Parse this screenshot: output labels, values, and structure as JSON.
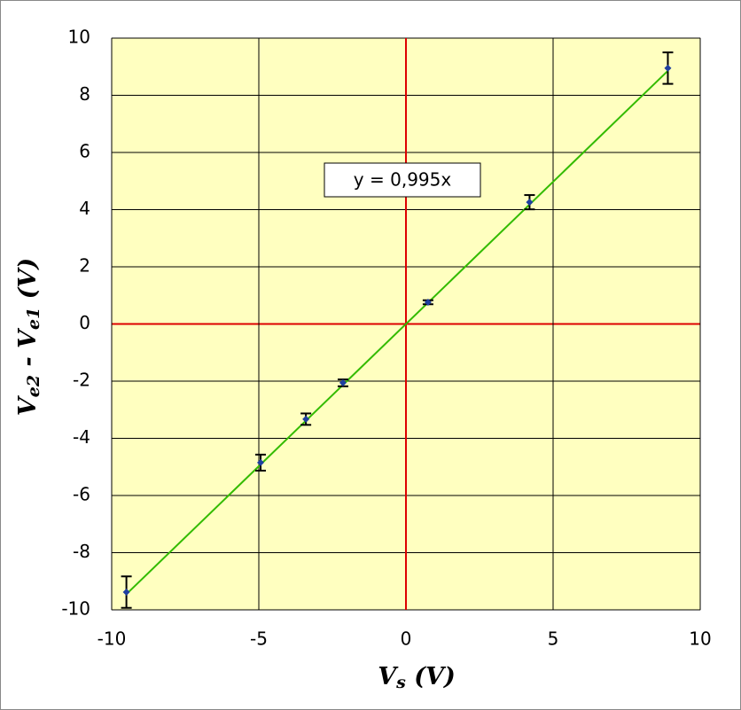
{
  "chart_data": {
    "type": "scatter",
    "xlabel": [
      {
        "text": "V"
      },
      {
        "text": "s",
        "sub": true
      },
      {
        "text": " (V)"
      }
    ],
    "ylabel": [
      {
        "text": "V"
      },
      {
        "text": "e2",
        "sub": true
      },
      {
        "text": " - V"
      },
      {
        "text": "e1",
        "sub": true
      },
      {
        "text": " (V)"
      }
    ],
    "xlim": [
      -10,
      10
    ],
    "xticks": [
      -10,
      -5,
      0,
      5,
      10
    ],
    "ylim": [
      -10,
      10
    ],
    "yticks": [
      -10,
      -8,
      -6,
      -4,
      -2,
      0,
      2,
      4,
      6,
      8,
      10
    ],
    "grid": true,
    "background": "#ffffc0",
    "zero_line_color": "#dd0000",
    "series": [
      {
        "color": "#1f3fa0",
        "x": [
          -9.5,
          -4.94,
          -3.4,
          -2.14,
          0.75,
          4.2,
          8.9
        ],
        "values": [
          -9.38,
          -4.85,
          -3.33,
          -2.06,
          0.76,
          4.26,
          8.95
        ],
        "errors": [
          0.55,
          0.28,
          0.2,
          0.12,
          0.07,
          0.25,
          0.55
        ]
      }
    ],
    "trendline": {
      "slope": 0.995,
      "label": "y = 0,995x",
      "color": "#33bb00"
    }
  }
}
